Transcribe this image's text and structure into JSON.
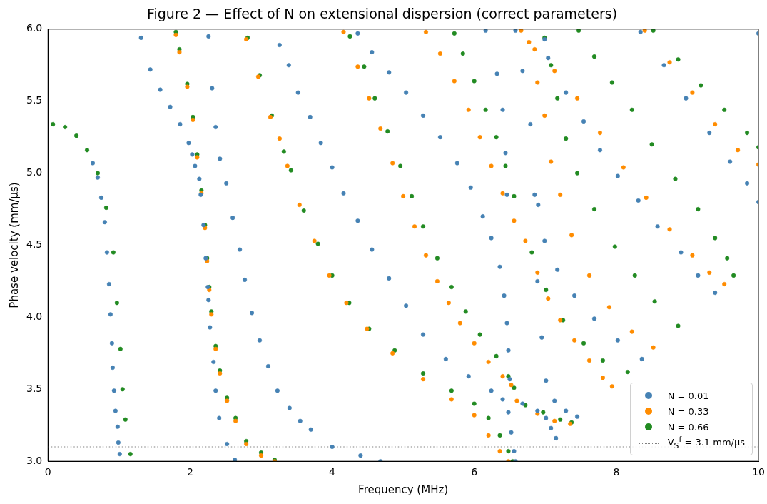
{
  "chart_data": {
    "type": "scatter",
    "title": "Figure 2 — Effect of N on extensional dispersion (correct parameters)",
    "xlabel": "Frequency (MHz)",
    "ylabel": "Phase velocity (mm/μs)",
    "xlim": [
      0,
      10
    ],
    "xticks": [
      0,
      2,
      4,
      6,
      8,
      10
    ],
    "ylim": [
      3,
      6
    ],
    "yticks": [
      {
        "value": 3,
        "label": "3.0"
      },
      3.5,
      {
        "value": 4,
        "label": "4.0"
      },
      4.5,
      {
        "value": 5,
        "label": "5.0"
      },
      5.5,
      {
        "value": 6,
        "label": "6.0"
      }
    ],
    "grid": false,
    "legend": "bottom right",
    "marker": "circle",
    "ref_lines": [
      {
        "axis": "y",
        "value": 3.1,
        "label": "V$_{S}$$^{f}$ = 3.1 mm/μs",
        "color": "#808080",
        "line_style": "dotted"
      }
    ],
    "series": [
      {
        "name": "N = 0.01",
        "color": "#4682b4",
        "x": [
          0.63,
          0.7,
          0.75,
          0.8,
          0.83,
          0.86,
          0.88,
          0.9,
          0.91,
          0.93,
          0.95,
          0.98,
          0.99,
          1.01,
          1.31,
          1.44,
          1.58,
          1.72,
          1.86,
          1.98,
          2.03,
          2.07,
          2.13,
          2.15,
          2.19,
          2.22,
          2.25,
          2.26,
          2.28,
          2.33,
          2.36,
          2.41,
          2.52,
          2.63,
          2.26,
          2.31,
          2.36,
          2.42,
          2.51,
          2.6,
          2.7,
          2.77,
          2.87,
          2.98,
          3.1,
          3.23,
          3.4,
          3.55,
          3.7,
          4.0,
          4.4,
          4.68,
          3.26,
          3.39,
          3.52,
          3.69,
          3.84,
          4.0,
          4.16,
          4.36,
          4.56,
          4.8,
          5.04,
          5.28,
          5.6,
          5.92,
          6.24,
          6.4,
          6.48,
          6.52,
          6.56,
          6.58,
          6.68,
          6.89,
          7.01,
          7.08,
          7.15,
          4.36,
          4.56,
          4.8,
          5.04,
          5.28,
          5.52,
          5.76,
          5.95,
          6.12,
          6.24,
          6.36,
          6.42,
          6.46,
          6.48,
          6.5,
          6.16,
          6.32,
          6.4,
          6.44,
          6.46,
          6.58,
          6.68,
          6.79,
          6.85,
          6.89,
          6.95,
          7.01,
          7.13,
          7.29,
          7.45,
          6.9,
          6.99,
          7.17,
          7.41,
          7.69,
          8.02,
          8.36,
          6.99,
          7.04,
          7.29,
          7.54,
          7.77,
          8.02,
          8.31,
          8.58,
          8.91,
          9.15,
          9.39,
          8.34,
          8.67,
          8.98,
          9.31,
          9.6,
          9.84,
          10.0,
          10.0
        ],
        "values": [
          5.07,
          4.97,
          4.83,
          4.66,
          4.45,
          4.23,
          4.02,
          3.82,
          3.65,
          3.49,
          3.35,
          3.24,
          3.13,
          3.05,
          5.94,
          5.72,
          5.58,
          5.46,
          5.34,
          5.21,
          5.13,
          5.05,
          4.96,
          4.85,
          4.64,
          4.41,
          4.21,
          4.12,
          3.93,
          3.69,
          3.49,
          3.3,
          3.12,
          3.01,
          5.95,
          5.59,
          5.32,
          5.1,
          4.93,
          4.69,
          4.47,
          4.26,
          4.03,
          3.84,
          3.66,
          3.49,
          3.37,
          3.28,
          3.22,
          3.1,
          3.04,
          3.0,
          5.89,
          5.75,
          5.56,
          5.39,
          5.21,
          5.04,
          4.86,
          4.67,
          4.47,
          4.27,
          4.08,
          3.88,
          3.71,
          3.59,
          3.49,
          3.43,
          3.34,
          3.2,
          3.07,
          3.0,
          3.4,
          3.35,
          3.3,
          3.23,
          3.16,
          5.97,
          5.84,
          5.7,
          5.56,
          5.4,
          5.25,
          5.07,
          4.9,
          4.7,
          4.55,
          4.35,
          4.15,
          3.96,
          3.77,
          3.57,
          5.99,
          5.69,
          5.44,
          5.14,
          4.85,
          5.99,
          5.71,
          5.34,
          4.85,
          4.25,
          3.86,
          3.56,
          3.42,
          3.35,
          3.31,
          4.78,
          4.53,
          4.33,
          4.15,
          3.99,
          3.84,
          3.71,
          5.93,
          5.8,
          5.56,
          5.36,
          5.16,
          4.98,
          4.81,
          4.63,
          4.45,
          4.29,
          4.17,
          5.98,
          5.75,
          5.52,
          5.28,
          5.08,
          4.93,
          4.8,
          5.97
        ]
      },
      {
        "name": "N = 0.33",
        "color": "#ff8c00",
        "x": [
          1.8,
          1.85,
          1.96,
          2.04,
          2.1,
          2.16,
          2.21,
          2.24,
          2.27,
          2.3,
          2.36,
          2.42,
          2.52,
          2.64,
          2.79,
          3.0,
          3.19,
          2.79,
          2.96,
          3.13,
          3.26,
          3.37,
          3.54,
          3.75,
          3.96,
          4.2,
          4.49,
          4.85,
          5.28,
          5.68,
          6.0,
          6.2,
          6.36,
          6.48,
          4.16,
          4.36,
          4.52,
          4.68,
          4.85,
          5.0,
          5.16,
          5.32,
          5.48,
          5.64,
          5.8,
          6.0,
          6.2,
          6.4,
          6.52,
          6.6,
          6.89,
          7.13,
          7.35,
          5.32,
          5.52,
          5.72,
          5.92,
          6.08,
          6.24,
          6.4,
          6.56,
          6.72,
          6.89,
          7.04,
          7.21,
          7.41,
          7.62,
          7.81,
          7.94,
          6.66,
          6.85,
          7.13,
          7.45,
          7.77,
          8.1,
          8.42,
          8.75,
          9.07,
          9.31,
          9.52,
          6.77,
          6.89,
          6.99,
          7.08,
          7.21,
          7.37,
          7.62,
          7.9,
          8.22,
          8.52,
          8.4,
          8.75,
          9.07,
          9.39,
          9.71,
          10.0
        ],
        "values": [
          5.96,
          5.84,
          5.6,
          5.37,
          5.11,
          4.86,
          4.62,
          4.39,
          4.19,
          4.02,
          3.78,
          3.61,
          3.42,
          3.28,
          3.12,
          3.04,
          3.0,
          5.93,
          5.67,
          5.39,
          5.24,
          5.05,
          4.78,
          4.53,
          4.29,
          4.1,
          3.92,
          3.75,
          3.57,
          3.43,
          3.32,
          3.18,
          3.07,
          3.0,
          5.98,
          5.74,
          5.52,
          5.31,
          5.07,
          4.84,
          4.63,
          4.43,
          4.25,
          4.1,
          3.96,
          3.82,
          3.69,
          3.59,
          3.53,
          3.42,
          3.33,
          3.28,
          3.26,
          5.98,
          5.83,
          5.64,
          5.44,
          5.25,
          5.05,
          4.86,
          4.67,
          4.53,
          4.31,
          4.13,
          3.98,
          3.84,
          3.7,
          3.58,
          3.52,
          5.99,
          5.86,
          5.71,
          5.52,
          5.28,
          5.04,
          4.83,
          4.61,
          4.43,
          4.31,
          4.23,
          5.91,
          5.63,
          5.4,
          5.08,
          4.85,
          4.57,
          4.29,
          4.07,
          3.9,
          3.79,
          5.99,
          5.77,
          5.56,
          5.34,
          5.16,
          5.06
        ]
      },
      {
        "name": "N = 0.66",
        "color": "#228b22",
        "x": [
          0.07,
          0.24,
          0.4,
          0.55,
          0.7,
          0.82,
          0.92,
          0.97,
          1.02,
          1.05,
          1.09,
          1.16,
          1.8,
          1.85,
          1.96,
          2.04,
          2.1,
          2.16,
          2.21,
          2.24,
          2.27,
          2.3,
          2.36,
          2.42,
          2.52,
          2.64,
          2.79,
          3.0,
          3.19,
          2.81,
          2.98,
          3.15,
          3.32,
          3.42,
          3.6,
          3.8,
          4.0,
          4.24,
          4.52,
          4.88,
          5.28,
          5.68,
          6.0,
          6.2,
          6.36,
          6.48,
          6.54,
          4.25,
          4.45,
          4.6,
          4.78,
          4.96,
          5.12,
          5.28,
          5.48,
          5.68,
          5.88,
          6.08,
          6.31,
          6.48,
          6.56,
          6.72,
          6.97,
          7.21,
          7.37,
          5.72,
          5.84,
          6.0,
          6.16,
          6.31,
          6.44,
          6.56,
          6.81,
          7.01,
          7.25,
          7.54,
          7.81,
          8.16,
          6.99,
          7.08,
          7.17,
          7.29,
          7.45,
          7.69,
          7.98,
          8.26,
          8.54,
          8.87,
          7.47,
          7.69,
          7.94,
          8.22,
          8.5,
          8.83,
          9.15,
          9.39,
          9.56,
          9.65,
          8.52,
          8.87,
          9.19,
          9.52,
          9.84,
          10.0
        ],
        "values": [
          5.34,
          5.32,
          5.26,
          5.16,
          5.0,
          4.76,
          4.45,
          4.1,
          3.78,
          3.5,
          3.29,
          3.05,
          5.98,
          5.86,
          5.62,
          5.39,
          5.13,
          4.88,
          4.64,
          4.41,
          4.21,
          4.04,
          3.8,
          3.63,
          3.44,
          3.3,
          3.14,
          3.06,
          3.01,
          5.94,
          5.68,
          5.4,
          5.15,
          5.02,
          4.74,
          4.51,
          4.29,
          4.1,
          3.92,
          3.77,
          3.61,
          3.49,
          3.4,
          3.3,
          3.18,
          3.07,
          3.0,
          5.95,
          5.74,
          5.52,
          5.29,
          5.05,
          4.84,
          4.63,
          4.41,
          4.21,
          4.04,
          3.88,
          3.73,
          3.59,
          3.51,
          3.39,
          3.34,
          3.29,
          3.27,
          5.97,
          5.83,
          5.64,
          5.44,
          5.25,
          5.05,
          4.84,
          4.45,
          4.19,
          3.98,
          3.82,
          3.7,
          3.62,
          5.94,
          5.75,
          5.52,
          5.24,
          5.0,
          4.75,
          4.49,
          4.29,
          4.11,
          3.94,
          5.99,
          5.81,
          5.63,
          5.44,
          5.2,
          4.96,
          4.75,
          4.55,
          4.41,
          4.29,
          5.99,
          5.79,
          5.61,
          5.44,
          5.28,
          5.18
        ]
      }
    ]
  }
}
